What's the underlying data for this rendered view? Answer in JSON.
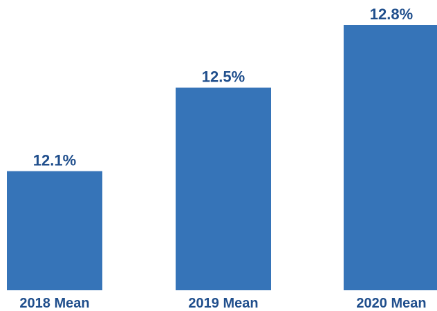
{
  "chart_data": {
    "type": "bar",
    "categories": [
      "2018 Mean",
      "2019 Mean",
      "2020 Mean"
    ],
    "values": [
      12.1,
      12.5,
      12.8
    ],
    "data_labels": [
      "12.1%",
      "12.5%",
      "12.8%"
    ],
    "ylim": [
      11.53,
      12.8
    ],
    "grid": false,
    "legend": "none"
  },
  "colors": {
    "bar": "#3674b8",
    "label_text": "#1f4e8c",
    "background": "#ffffff"
  }
}
